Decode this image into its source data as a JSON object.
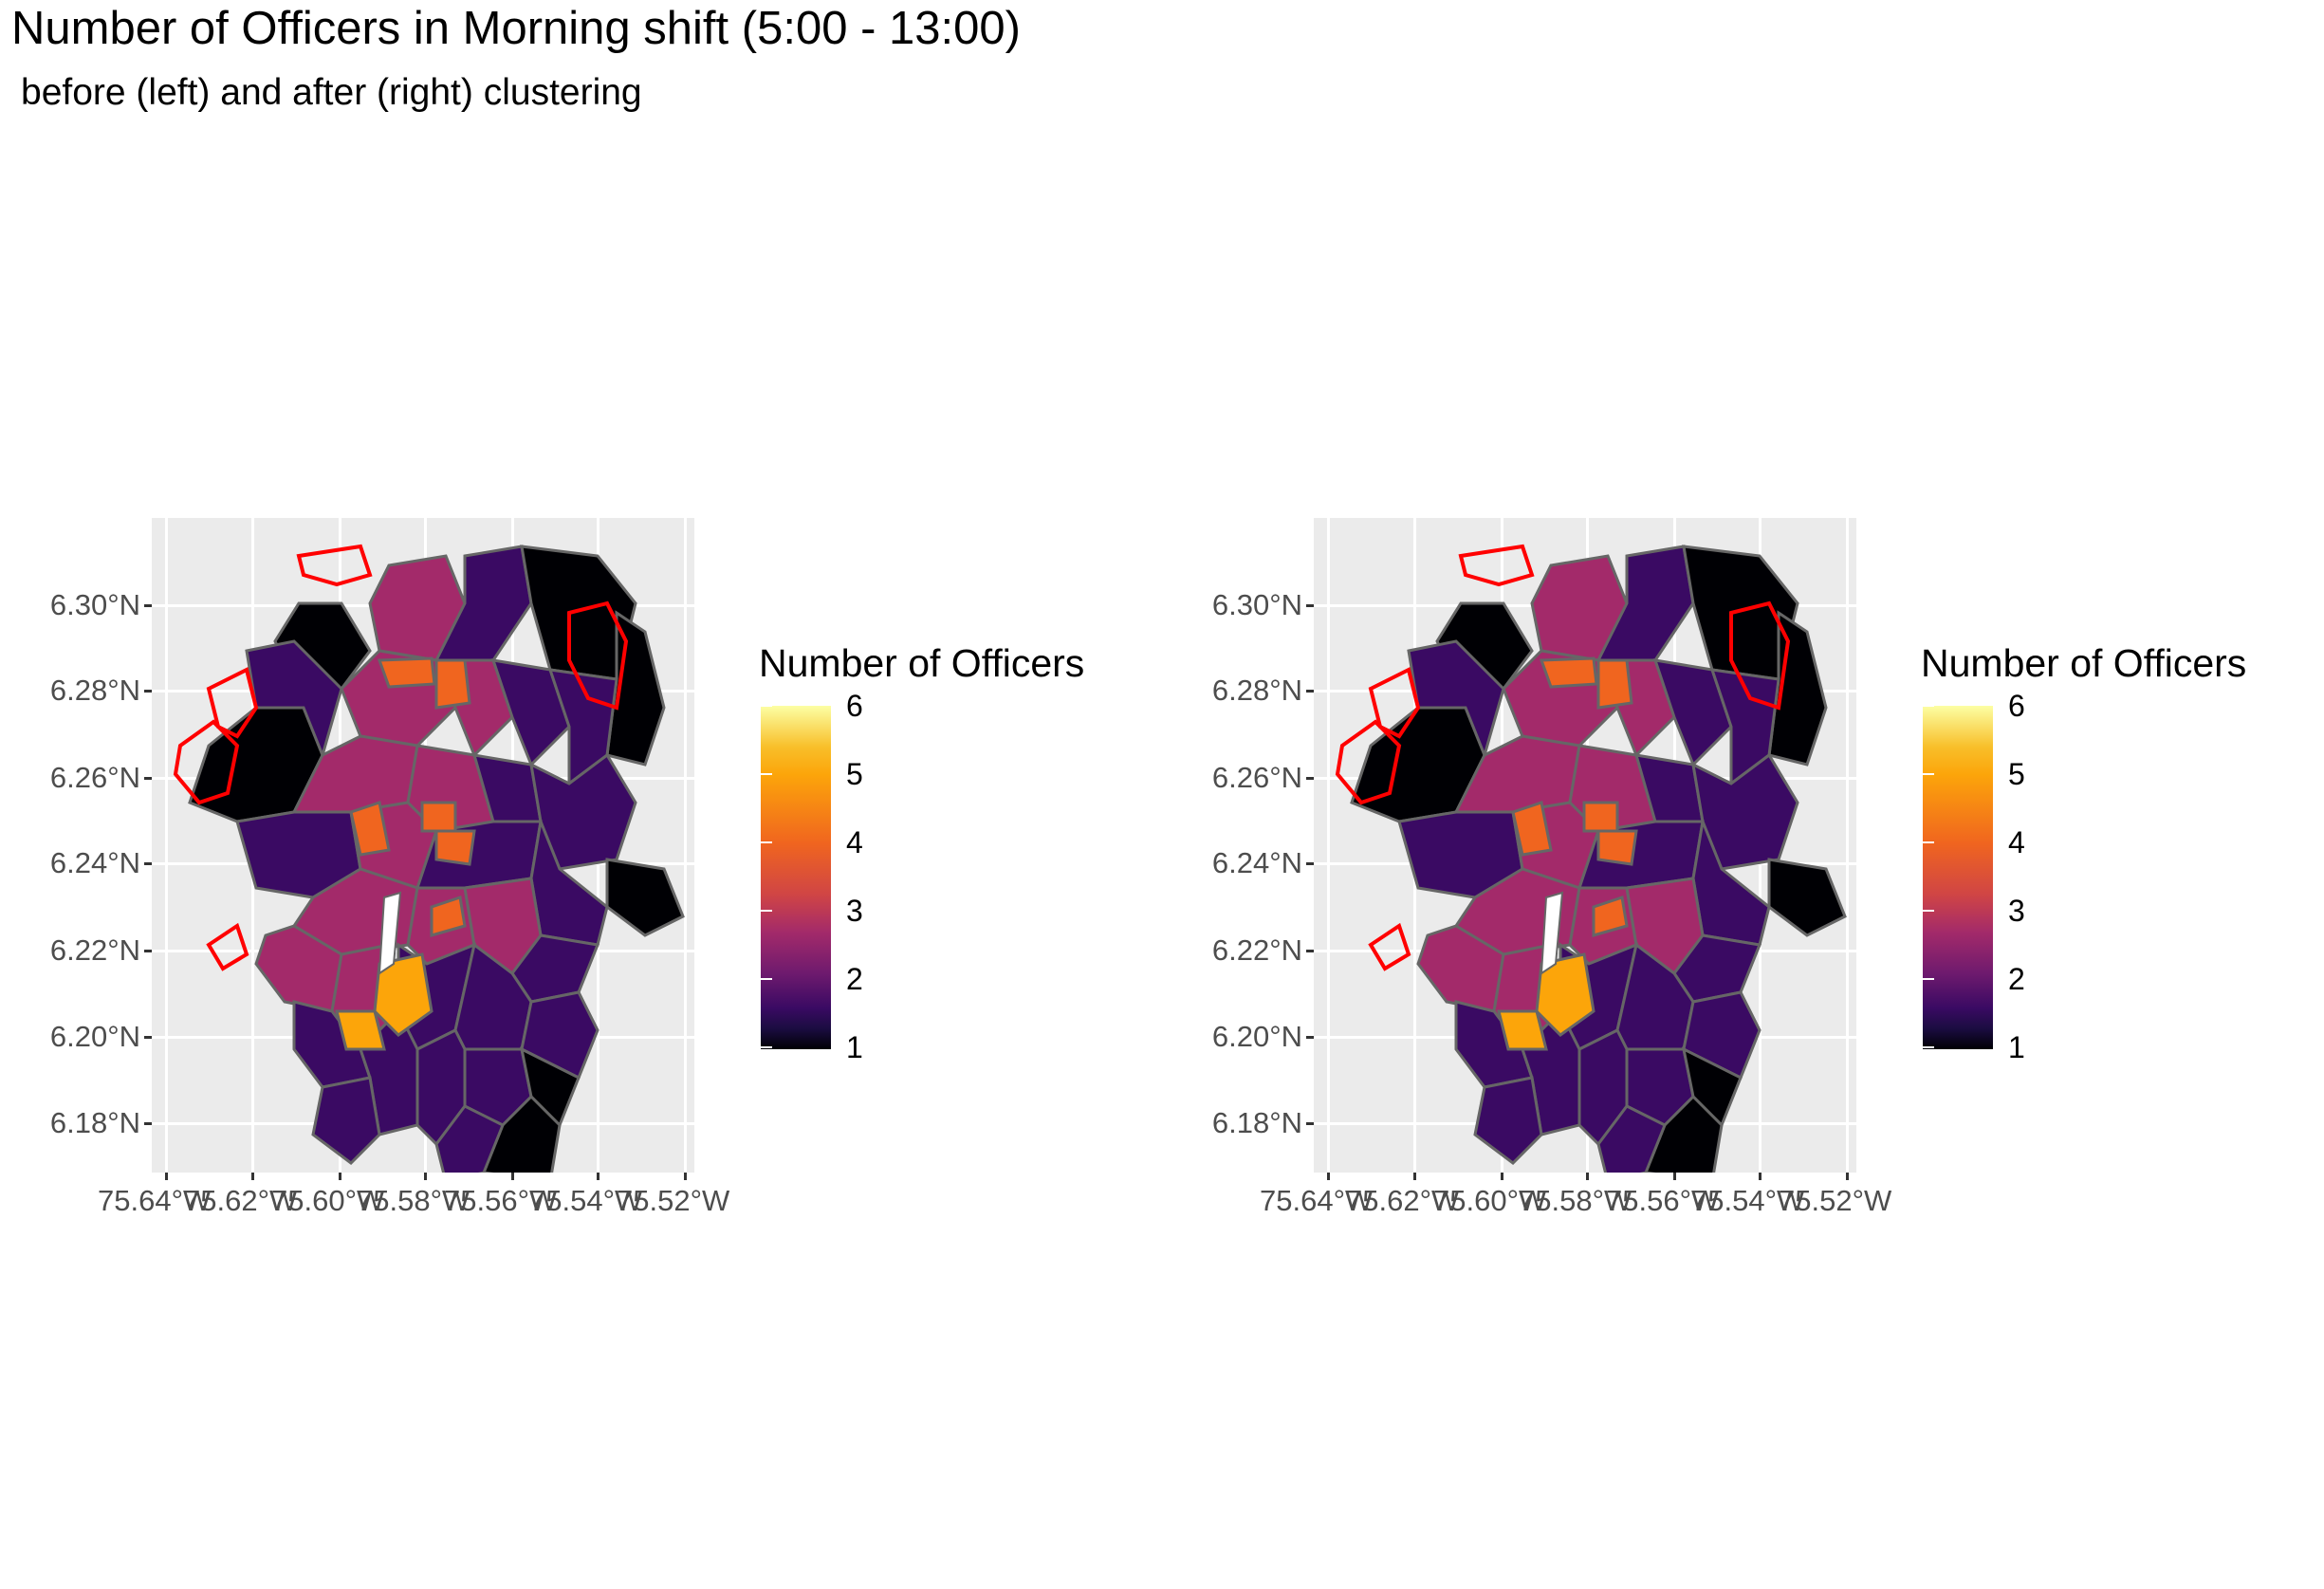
{
  "title": "Number of Officers in Morning shift (5:00 - 13:00)",
  "subtitle": "before (left) and after (right) clustering",
  "axes": {
    "y_ticks": [
      "6.30°N",
      "6.28°N",
      "6.26°N",
      "6.24°N",
      "6.22°N",
      "6.20°N",
      "6.18°N"
    ],
    "x_ticks": [
      "75.64°W",
      "75.62°W",
      "75.60°W",
      "75.58°W",
      "75.56°W",
      "75.54°W",
      "75.52°W"
    ]
  },
  "legend": {
    "title": "Number of Officers",
    "labels": [
      "6",
      "5",
      "4",
      "3",
      "2",
      "1"
    ]
  },
  "panels": [
    {
      "name": "before"
    },
    {
      "name": "after"
    }
  ],
  "colors": {
    "panel_background": "#ebebeb",
    "grid": "#ffffff",
    "border": "#666666",
    "highlight_border": "#ff0000",
    "scale": [
      "#000004",
      "#3a0a63",
      "#a32a6a",
      "#f0651f",
      "#fca50a",
      "#fcffa4"
    ]
  }
}
